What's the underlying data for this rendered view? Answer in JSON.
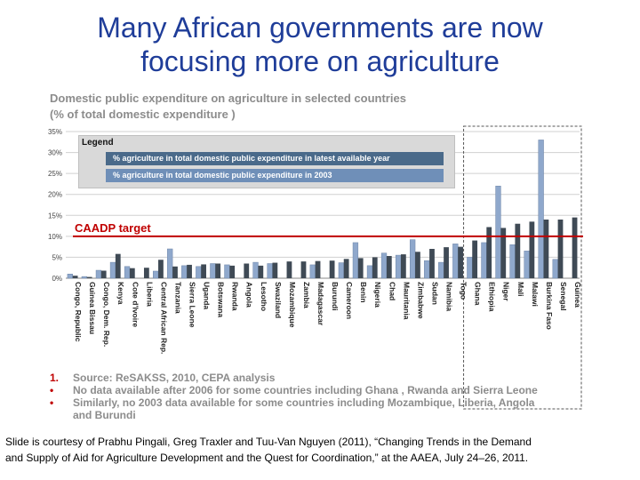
{
  "slide": {
    "title_line1": "Many African governments are now",
    "title_line2": "focusing more on agriculture",
    "caption_line1": "Slide is courtesy of Prabhu Pingali,  Greg Traxler and Tuu-Van Nguyen (2011), “Changing Trends in the Demand",
    "caption_line2": "and Supply of Aid for Agriculture Development and the Quest for Coordination,” at the AAEA, July 24–26, 2011."
  },
  "notes": [
    {
      "marker": "1.",
      "text": "Source: ReSAKSS, 2010, CEPA analysis"
    },
    {
      "marker": "•",
      "text": "No data available after 2006 for some countries including Ghana , Rwanda and Sierra Leone"
    },
    {
      "marker": "•",
      "text": "Similarly, no 2003 data available for some countries including Mozambique, Liberia, Angola",
      "continuation": "and Burundi"
    }
  ],
  "colors": {
    "latest": "#3f4a55",
    "y2003": "#8fa8cc",
    "target": "#c00000",
    "title": "#1f3d99"
  },
  "chart_data": {
    "type": "bar",
    "title_line1": "Domestic public expenditure on agriculture in selected countries",
    "title_line2": "(% of total domestic expenditure )",
    "ylim": [
      0,
      35
    ],
    "yticks": [
      0,
      5,
      10,
      15,
      20,
      25,
      30,
      35
    ],
    "ytick_labels": [
      "0%",
      "5%",
      "10%",
      "15%",
      "20%",
      "25%",
      "30%",
      "35%"
    ],
    "legend": {
      "heading": "Legend",
      "latest_label": "% agriculture in total domestic public expenditure in latest available  year",
      "y2003_label": "% agriculture in total domestic public expenditure in 2003"
    },
    "target": {
      "label": "CAADP target",
      "value": 10
    },
    "categories": [
      "Congo, Republic",
      "Guinea Bissau",
      "Congo, Dem. Rep.",
      "Kenya",
      "Cote d'Ivoire",
      "Liberia",
      "Central African Rep.",
      "Tanzania",
      "Sierra Leone",
      "Uganda",
      "Botswana",
      "Rwanda",
      "Angola",
      "Lesotho",
      "Swaziland",
      "Mozambique",
      "Zambia",
      "Madagascar",
      "Burundi",
      "Cameroon",
      "Benin",
      "Nigeria",
      "Chad",
      "Mauritania",
      "Zimbabwe",
      "Sudan",
      "Namibia",
      "Togo",
      "Ghana",
      "Ethiopia",
      "Niger",
      "Mali",
      "Malawi",
      "Burkina Faso",
      "Senegal",
      "Guinea"
    ],
    "series": [
      {
        "name": "% agriculture in total domestic public expenditure in 2003",
        "values": [
          1.0,
          0.4,
          1.9,
          3.8,
          2.8,
          null,
          1.7,
          7.0,
          3.0,
          2.8,
          3.5,
          3.2,
          null,
          3.8,
          3.5,
          null,
          0,
          3.2,
          null,
          3.7,
          8.5,
          3.0,
          6.0,
          5.5,
          9.2,
          4.2,
          3.8,
          8.2,
          5.0,
          8.5,
          22.0,
          8.0,
          6.5,
          33.0,
          4.5,
          0
        ],
        "color": "#8fa8cc"
      },
      {
        "name": "% agriculture in total domestic public expenditure in latest available  year",
        "values": [
          0.6,
          0.3,
          1.8,
          5.8,
          2.4,
          2.5,
          4.4,
          2.8,
          3.2,
          3.3,
          3.5,
          3.0,
          3.5,
          3.0,
          3.7,
          4.0,
          4.0,
          4.1,
          4.2,
          4.6,
          4.8,
          5.0,
          5.3,
          5.7,
          6.3,
          7.0,
          7.4,
          7.5,
          9.0,
          12.2,
          12.0,
          13.0,
          13.5,
          14.0,
          14.0,
          14.5
        ],
        "color": "#3f4a55"
      }
    ],
    "highlight_group": {
      "from": "Ghana",
      "to": "Guinea",
      "style": "dashed"
    }
  }
}
